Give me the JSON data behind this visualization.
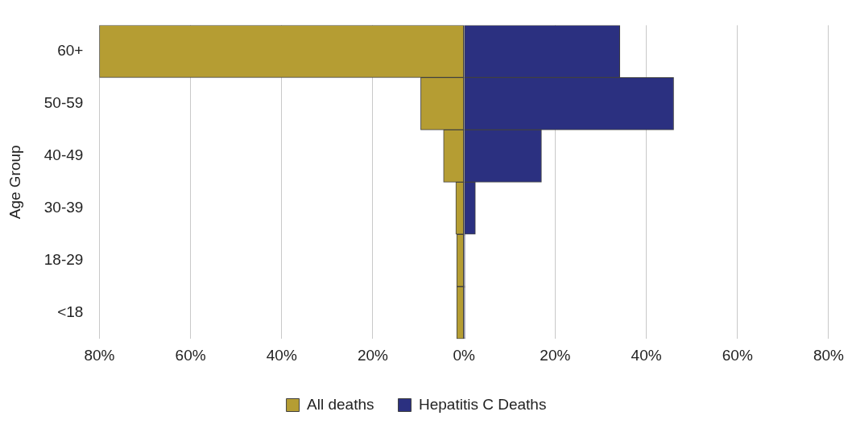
{
  "chart_data": {
    "type": "bar",
    "orientation": "horizontal",
    "stacked": true,
    "ylabel": "Age Group",
    "categories": [
      "60+",
      "50-59",
      "40-49",
      "30-39",
      "18-29",
      "<18"
    ],
    "series": [
      {
        "name": "All deaths",
        "color": "#b59d33",
        "values": [
          -80,
          -9.5,
          -4.5,
          -1.8,
          -1.6,
          -1.6
        ]
      },
      {
        "name": "Hepatitis C Deaths",
        "color": "#2b3080",
        "values": [
          34.2,
          46,
          17,
          2.5,
          0.2,
          0.2
        ]
      }
    ],
    "xlim": [
      -80,
      80
    ],
    "xticks": [
      {
        "value": -80,
        "label": "80%"
      },
      {
        "value": -60,
        "label": "60%"
      },
      {
        "value": -40,
        "label": "40%"
      },
      {
        "value": -20,
        "label": "20%"
      },
      {
        "value": 0,
        "label": "0%"
      },
      {
        "value": 20,
        "label": "20%"
      },
      {
        "value": 40,
        "label": "40%"
      },
      {
        "value": 60,
        "label": "60%"
      },
      {
        "value": 80,
        "label": "80%"
      }
    ],
    "grid": "x",
    "legend": "bottom"
  }
}
